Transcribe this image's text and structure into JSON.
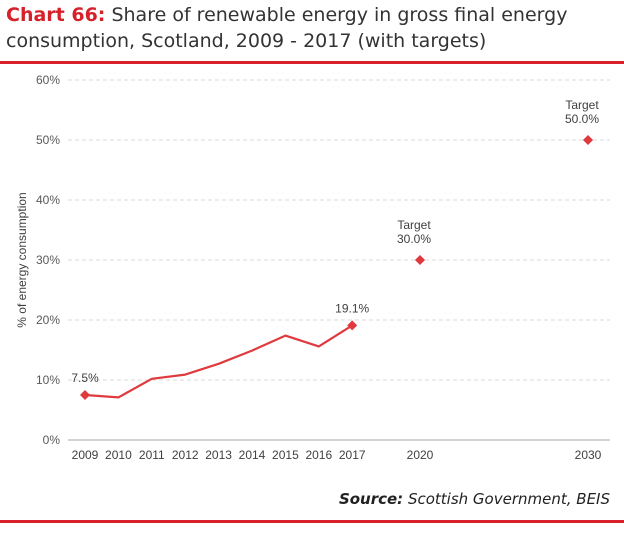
{
  "header": {
    "chart_label": "Chart 66:",
    "title_text": "Share of renewable energy in gross final energy consumption, Scotland, 2009 - 2017 (with targets)"
  },
  "source": {
    "label": "Source:",
    "text": "Scottish Government, BEIS"
  },
  "colors": {
    "accent": "#d6202a",
    "series": "#e03a3e",
    "grid": "#d9d9d9",
    "axis_text": "#595959"
  },
  "chart_data": {
    "type": "line",
    "ylabel": "% of energy consumption",
    "ylim": [
      0,
      60
    ],
    "yticks": [
      0,
      10,
      20,
      30,
      40,
      50,
      60
    ],
    "ytick_labels": [
      "0%",
      "10%",
      "20%",
      "30%",
      "40%",
      "50%",
      "60%"
    ],
    "categories": [
      "2009",
      "2010",
      "2011",
      "2012",
      "2013",
      "2014",
      "2015",
      "2016",
      "2017",
      "2020",
      "2030"
    ],
    "grid": true,
    "series": [
      {
        "values": [
          7.5,
          7.1,
          10.2,
          10.9,
          12.7,
          14.9,
          17.4,
          15.6,
          19.1,
          null,
          null
        ]
      },
      {
        "values": [
          null,
          null,
          null,
          null,
          null,
          null,
          null,
          null,
          null,
          30.0,
          50.0
        ]
      }
    ],
    "annotations": [
      {
        "category": "2009",
        "text": "7.5%"
      },
      {
        "category": "2017",
        "text": "19.1%"
      },
      {
        "category": "2020",
        "line1": "Target",
        "line2": "30.0%"
      },
      {
        "category": "2030",
        "line1": "Target",
        "line2": "50.0%"
      }
    ]
  }
}
